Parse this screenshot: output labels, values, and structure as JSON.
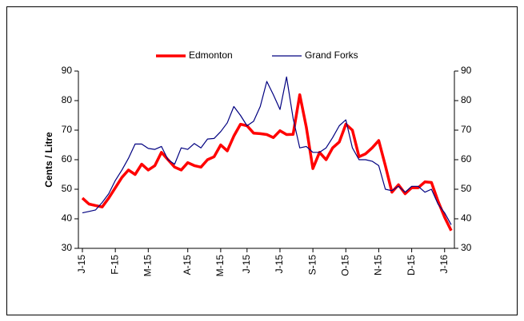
{
  "chart_data": {
    "type": "line",
    "y_label": "Cents / Litre",
    "categories": [
      "J-15",
      null,
      null,
      null,
      null,
      "F-15",
      null,
      null,
      null,
      null,
      "M-15",
      null,
      null,
      null,
      null,
      null,
      "A-15",
      null,
      null,
      null,
      null,
      "M-15",
      null,
      null,
      null,
      "J-15",
      null,
      null,
      null,
      null,
      "J-15",
      null,
      null,
      null,
      null,
      "S-15",
      null,
      null,
      null,
      null,
      "O-15",
      null,
      null,
      null,
      null,
      "N-15",
      null,
      null,
      null,
      null,
      "D-15",
      null,
      null,
      null,
      null,
      "J-16",
      null
    ],
    "series": [
      {
        "name": "Edmonton",
        "color": "#ff0000",
        "values": [
          47,
          45,
          44.5,
          44,
          47,
          50.5,
          54,
          56.5,
          55,
          58.5,
          56.5,
          58,
          62.5,
          60,
          57.5,
          56.5,
          59,
          58,
          57.5,
          60,
          61,
          65,
          63,
          68,
          72,
          71.5,
          69,
          68.8,
          68.5,
          67.5,
          69.8,
          68.5,
          68.6,
          82,
          71,
          57,
          62.5,
          60,
          64,
          66,
          72,
          70,
          61,
          62,
          64,
          66.5,
          58,
          49,
          51.5,
          48.5,
          50.5,
          50.5,
          52.5,
          52.3,
          46,
          40.5,
          36
        ]
      },
      {
        "name": "Grand Forks",
        "color": "#000080",
        "values": [
          42,
          42.5,
          43,
          45.5,
          48.5,
          53,
          56.5,
          60.5,
          65.3,
          65.3,
          63.8,
          63.5,
          64.5,
          60,
          58.5,
          64,
          63.5,
          65.5,
          64,
          67,
          67.2,
          69.5,
          72.5,
          78,
          75,
          71.5,
          73,
          78,
          86.5,
          82,
          77,
          88,
          74,
          64,
          64.5,
          62.5,
          62.5,
          64,
          67.5,
          71.5,
          73.5,
          64,
          60,
          60,
          59.5,
          58,
          50,
          49.5,
          51,
          49,
          51,
          51,
          49,
          50,
          45,
          42,
          38
        ]
      }
    ],
    "ylim": [
      30,
      90
    ],
    "yticks": [
      30,
      40,
      50,
      60,
      70,
      80,
      90
    ],
    "y2lim": [
      30,
      90
    ],
    "y2ticks": [
      30,
      40,
      50,
      60,
      70,
      80,
      90
    ],
    "legend": "top"
  }
}
